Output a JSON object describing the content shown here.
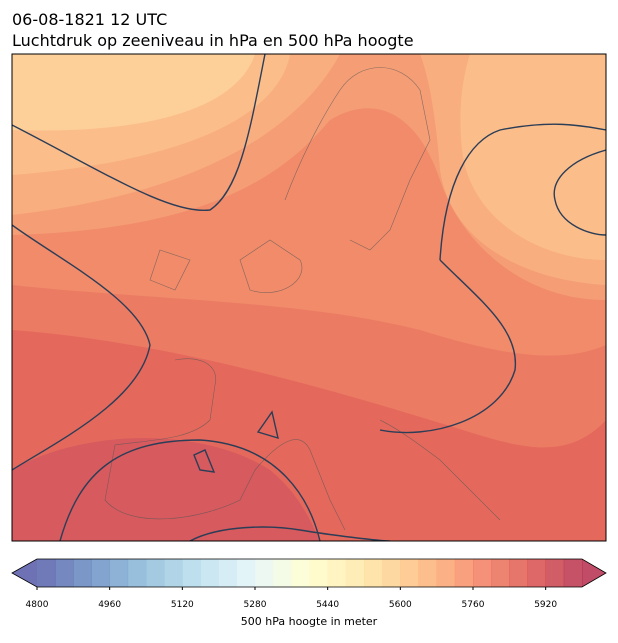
{
  "title": "06-08-1821 12 UTC",
  "subtitle": "Luchtdruk op zeeniveau in hPa en 500 hPa hoogte",
  "colorbar": {
    "label": "500 hPa hoogte in meter",
    "lim": [
      4800,
      6000
    ],
    "ticks": [
      4800,
      4960,
      5120,
      5280,
      5440,
      5600,
      5760,
      5920
    ],
    "levels": [
      4800,
      4840,
      4880,
      4920,
      4960,
      5000,
      5040,
      5080,
      5120,
      5160,
      5200,
      5240,
      5280,
      5320,
      5360,
      5400,
      5440,
      5480,
      5520,
      5560,
      5600,
      5640,
      5680,
      5720,
      5760,
      5800,
      5840,
      5880,
      5920,
      5960,
      6000
    ]
  }
}
